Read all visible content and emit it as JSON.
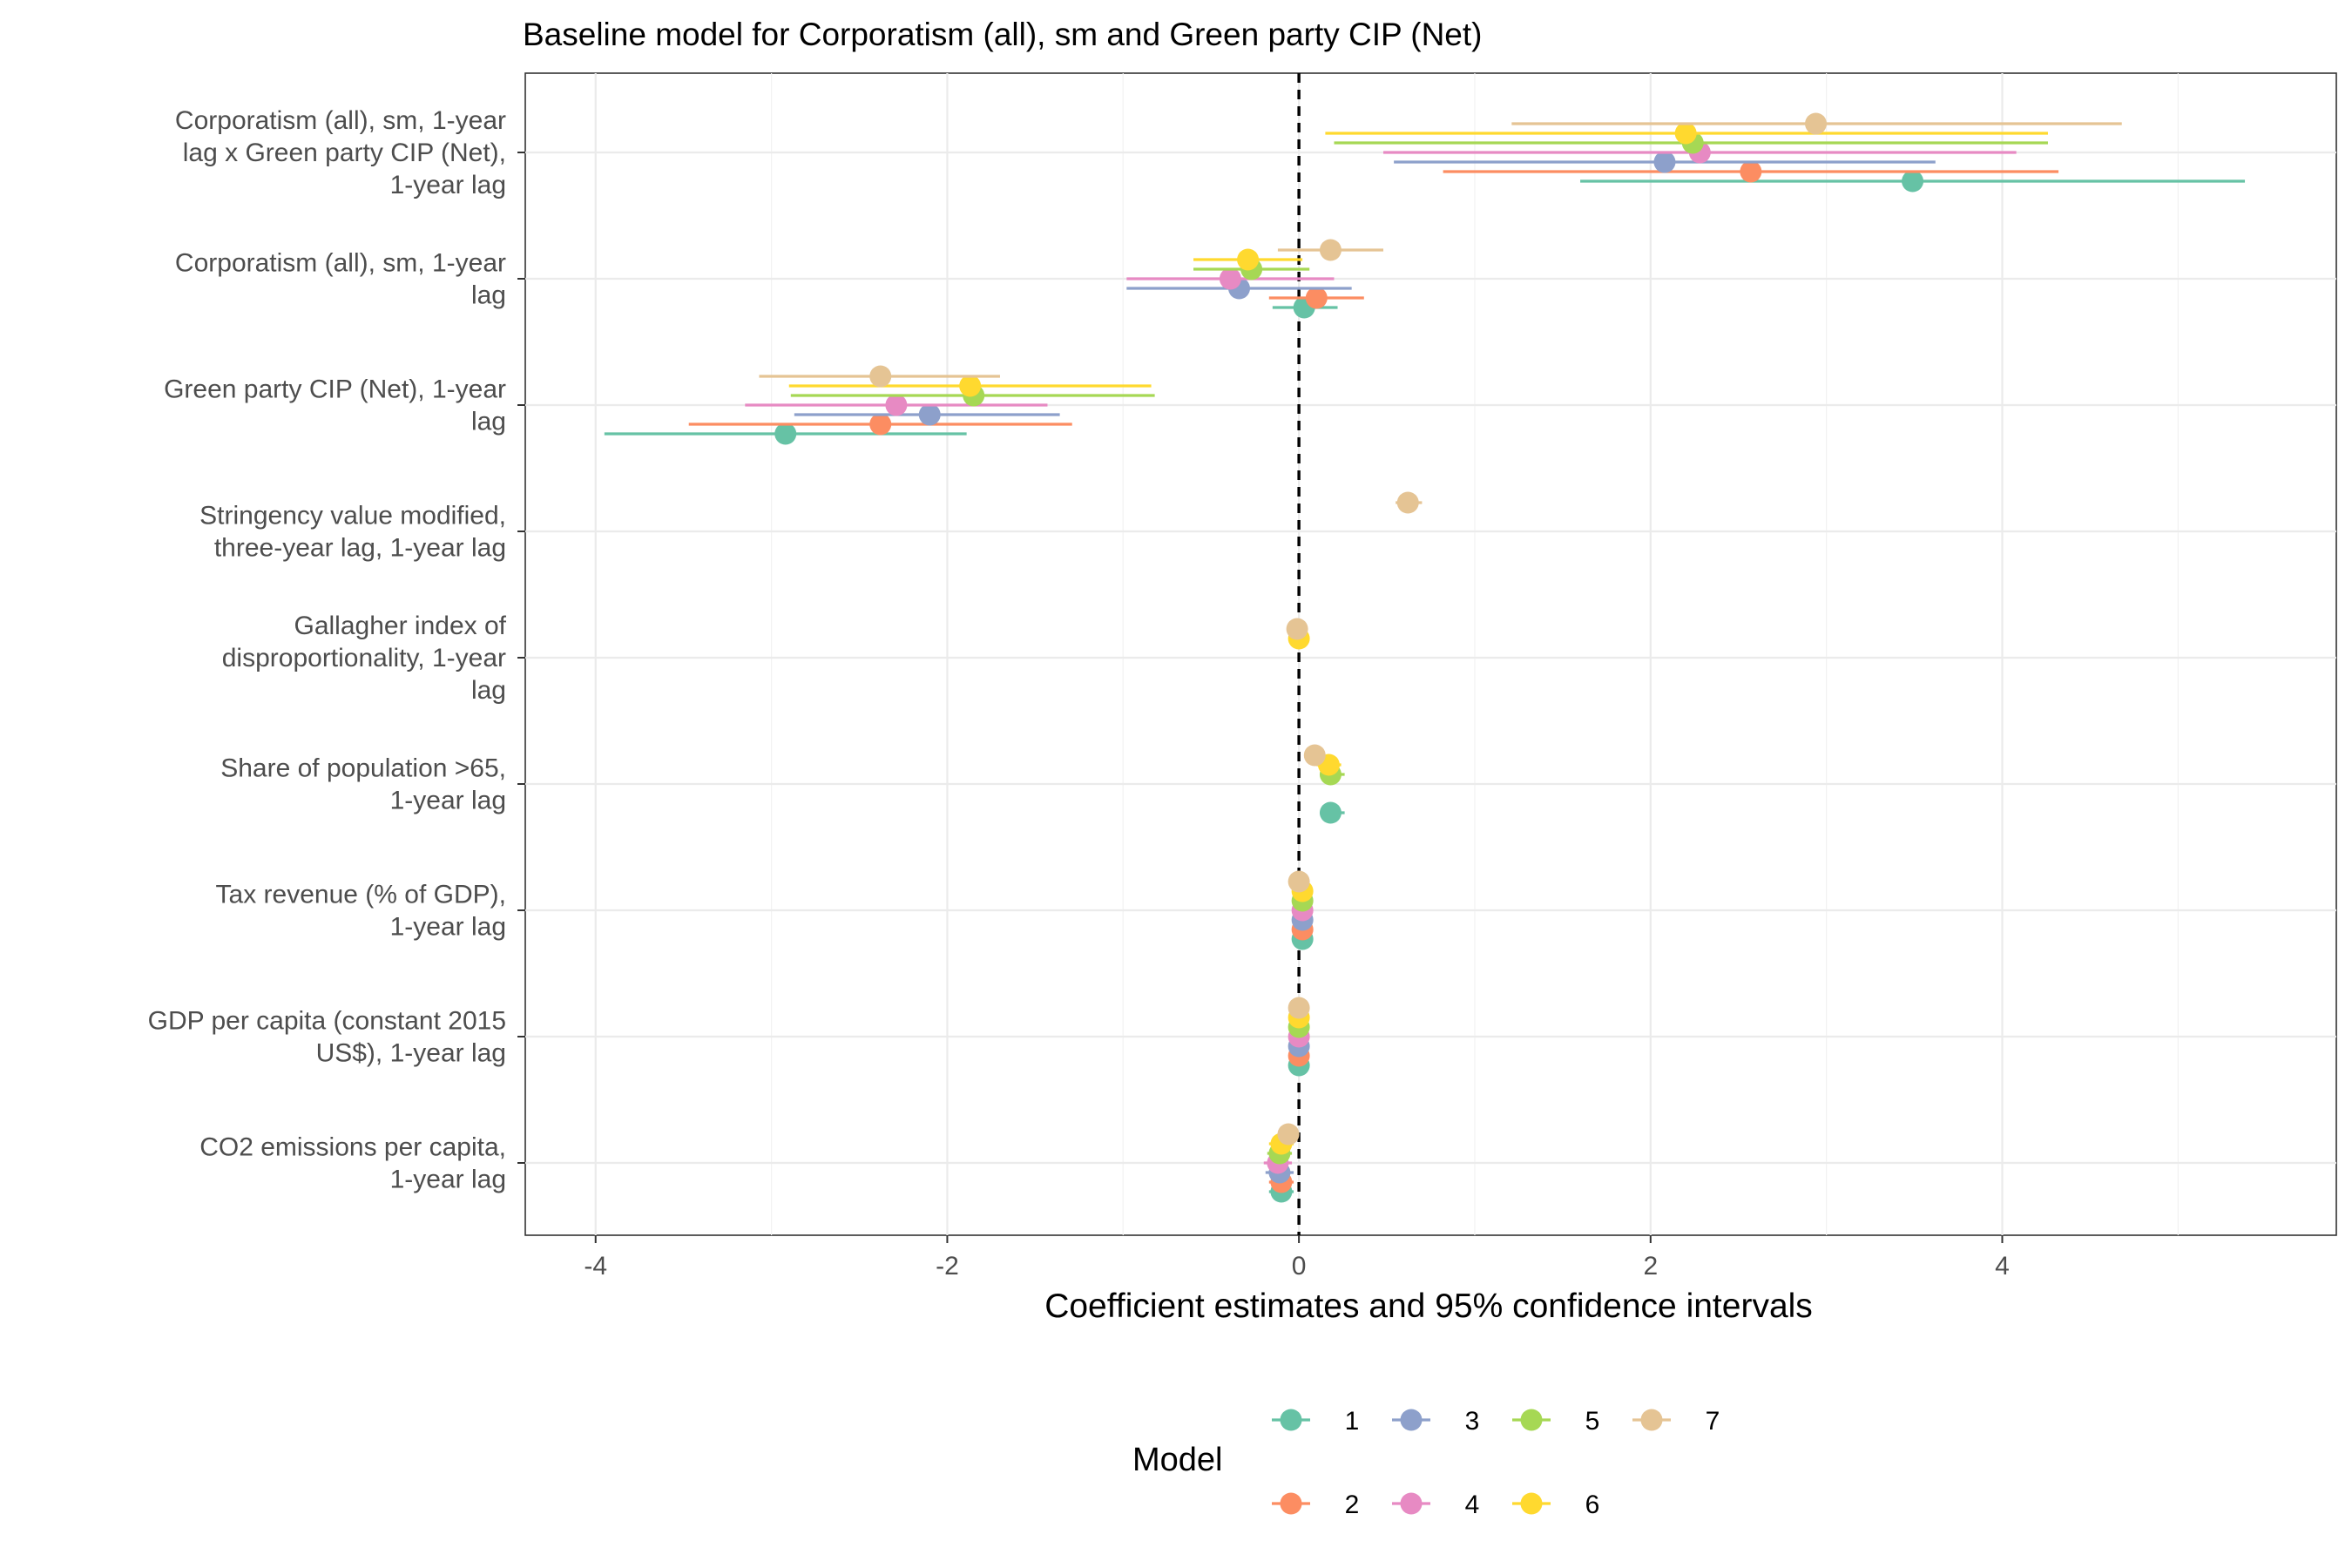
{
  "chart_data": {
    "type": "coefficient-plot",
    "title": "Baseline model for Corporatism (all), sm and Green party CIP (Net)",
    "xlabel": "Coefficient estimates and 95% confidence intervals",
    "xlim": [
      -4.4,
      5.9
    ],
    "xticks": [
      -4,
      -2,
      0,
      2,
      4
    ],
    "xtick_labels": [
      "-4",
      "-2",
      "0",
      "2",
      "4"
    ],
    "reference_line": 0,
    "grid": true,
    "terms": [
      {
        "label": [
          "Corporatism (all), sm, 1-year",
          "lag x Green party CIP (Net),",
          "1-year lag"
        ]
      },
      {
        "label": [
          "Corporatism (all), sm, 1-year",
          "lag"
        ]
      },
      {
        "label": [
          "Green party CIP (Net), 1-year",
          "lag"
        ]
      },
      {
        "label": [
          "Stringency value modified,",
          "three-year lag, 1-year lag"
        ]
      },
      {
        "label": [
          "Gallagher index of",
          "disproportionality, 1-year",
          "lag"
        ]
      },
      {
        "label": [
          "Share of population >65,",
          "1-year lag"
        ]
      },
      {
        "label": [
          "Tax revenue (% of GDP),",
          "1-year lag"
        ]
      },
      {
        "label": [
          "GDP per capita (constant 2015",
          "US$), 1-year lag"
        ]
      },
      {
        "label": [
          "CO2 emissions per capita,",
          "1-year lag"
        ]
      }
    ],
    "legend": {
      "title": "Model",
      "position": "bottom"
    },
    "series": [
      {
        "name": "1",
        "color": "#66C2A5",
        "points": [
          {
            "term": 0,
            "estimate": 3.49,
            "low": 1.6,
            "high": 5.38
          },
          {
            "term": 1,
            "estimate": 0.03,
            "low": -0.15,
            "high": 0.22
          },
          {
            "term": 2,
            "estimate": -2.92,
            "low": -3.95,
            "high": -1.89
          },
          {
            "term": 5,
            "estimate": 0.18,
            "low": 0.12,
            "high": 0.26
          },
          {
            "term": 6,
            "estimate": 0.02,
            "low": 0.0,
            "high": 0.04
          },
          {
            "term": 7,
            "estimate": 0.0,
            "low": -0.02,
            "high": 0.02
          },
          {
            "term": 8,
            "estimate": -0.1,
            "low": -0.17,
            "high": -0.03
          }
        ]
      },
      {
        "name": "2",
        "color": "#FC8D62",
        "points": [
          {
            "term": 0,
            "estimate": 2.57,
            "low": 0.82,
            "high": 4.32
          },
          {
            "term": 1,
            "estimate": 0.1,
            "low": -0.17,
            "high": 0.37
          },
          {
            "term": 2,
            "estimate": -2.38,
            "low": -3.47,
            "high": -1.29
          },
          {
            "term": 6,
            "estimate": 0.02,
            "low": 0.0,
            "high": 0.04
          },
          {
            "term": 7,
            "estimate": 0.0,
            "low": -0.02,
            "high": 0.02
          },
          {
            "term": 8,
            "estimate": -0.1,
            "low": -0.17,
            "high": -0.03
          }
        ]
      },
      {
        "name": "3",
        "color": "#8DA0CB",
        "points": [
          {
            "term": 0,
            "estimate": 2.08,
            "low": 0.54,
            "high": 3.62
          },
          {
            "term": 1,
            "estimate": -0.34,
            "low": -0.98,
            "high": 0.3
          },
          {
            "term": 2,
            "estimate": -2.1,
            "low": -2.87,
            "high": -1.36
          },
          {
            "term": 6,
            "estimate": 0.02,
            "low": 0.0,
            "high": 0.04
          },
          {
            "term": 7,
            "estimate": 0.0,
            "low": -0.02,
            "high": 0.02
          },
          {
            "term": 8,
            "estimate": -0.11,
            "low": -0.19,
            "high": -0.03
          }
        ]
      },
      {
        "name": "4",
        "color": "#E78AC3",
        "points": [
          {
            "term": 0,
            "estimate": 2.28,
            "low": 0.48,
            "high": 4.08
          },
          {
            "term": 1,
            "estimate": -0.39,
            "low": -0.98,
            "high": 0.2
          },
          {
            "term": 2,
            "estimate": -2.29,
            "low": -3.15,
            "high": -1.43
          },
          {
            "term": 6,
            "estimate": 0.02,
            "low": 0.0,
            "high": 0.04
          },
          {
            "term": 7,
            "estimate": 0.0,
            "low": -0.02,
            "high": 0.02
          },
          {
            "term": 8,
            "estimate": -0.12,
            "low": -0.2,
            "high": -0.04
          }
        ]
      },
      {
        "name": "5",
        "color": "#A6D854",
        "points": [
          {
            "term": 0,
            "estimate": 2.24,
            "low": 0.2,
            "high": 4.26
          },
          {
            "term": 1,
            "estimate": -0.27,
            "low": -0.6,
            "high": 0.06
          },
          {
            "term": 2,
            "estimate": -1.85,
            "low": -2.89,
            "high": -0.82
          },
          {
            "term": 5,
            "estimate": 0.18,
            "low": 0.12,
            "high": 0.26
          },
          {
            "term": 6,
            "estimate": 0.02,
            "low": 0.0,
            "high": 0.04
          },
          {
            "term": 7,
            "estimate": 0.0,
            "low": -0.02,
            "high": 0.02
          },
          {
            "term": 8,
            "estimate": -0.11,
            "low": -0.18,
            "high": -0.04
          }
        ]
      },
      {
        "name": "6",
        "color": "#FFD92F",
        "points": [
          {
            "term": 0,
            "estimate": 2.2,
            "low": 0.15,
            "high": 4.26
          },
          {
            "term": 1,
            "estimate": -0.29,
            "low": -0.6,
            "high": 0.02
          },
          {
            "term": 2,
            "estimate": -1.87,
            "low": -2.9,
            "high": -0.84
          },
          {
            "term": 4,
            "estimate": 0.0,
            "low": -0.02,
            "high": 0.02
          },
          {
            "term": 5,
            "estimate": 0.17,
            "low": 0.1,
            "high": 0.24
          },
          {
            "term": 6,
            "estimate": 0.02,
            "low": 0.0,
            "high": 0.04
          },
          {
            "term": 7,
            "estimate": 0.0,
            "low": -0.02,
            "high": 0.02
          },
          {
            "term": 8,
            "estimate": -0.1,
            "low": -0.17,
            "high": -0.03
          }
        ]
      },
      {
        "name": "7",
        "color": "#E5C494",
        "points": [
          {
            "term": 0,
            "estimate": 2.94,
            "low": 1.21,
            "high": 4.68
          },
          {
            "term": 1,
            "estimate": 0.18,
            "low": -0.12,
            "high": 0.48
          },
          {
            "term": 2,
            "estimate": -2.38,
            "low": -3.07,
            "high": -1.7
          },
          {
            "term": 3,
            "estimate": 0.62,
            "low": 0.55,
            "high": 0.7
          },
          {
            "term": 4,
            "estimate": -0.01,
            "low": -0.03,
            "high": 0.01
          },
          {
            "term": 5,
            "estimate": 0.09,
            "low": 0.05,
            "high": 0.13
          },
          {
            "term": 6,
            "estimate": 0.0,
            "low": -0.02,
            "high": 0.02
          },
          {
            "term": 7,
            "estimate": 0.0,
            "low": -0.02,
            "high": 0.02
          },
          {
            "term": 8,
            "estimate": -0.06,
            "low": -0.12,
            "high": 0.0
          }
        ]
      }
    ]
  }
}
